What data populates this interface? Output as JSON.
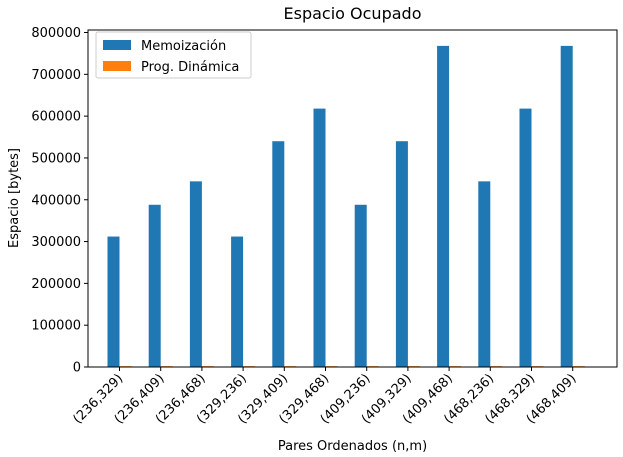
{
  "chart_data": {
    "type": "bar",
    "title": "Espacio Ocupado",
    "xlabel": "Pares Ordenados (n,m)",
    "ylabel": "Espacio [bytes]",
    "categories": [
      "(236,329)",
      "(236,409)",
      "(236,468)",
      "(329,236)",
      "(329,409)",
      "(329,468)",
      "(409,236)",
      "(409,329)",
      "(409,468)",
      "(468,236)",
      "(468,329)",
      "(468,409)"
    ],
    "series": [
      {
        "name": "Memoización",
        "color": "#1f77b4",
        "values": [
          312000,
          388000,
          444000,
          312000,
          540000,
          618000,
          388000,
          540000,
          768000,
          444000,
          618000,
          768000
        ]
      },
      {
        "name": "Prog. Dinámica",
        "color": "#ff7f0e",
        "values": [
          2000,
          2000,
          2000,
          2000,
          2000,
          2000,
          2000,
          2000,
          2000,
          2000,
          2000,
          2000
        ]
      }
    ],
    "yticks": [
      "0",
      "100000",
      "200000",
      "300000",
      "400000",
      "500000",
      "600000",
      "700000",
      "800000"
    ],
    "ylim": [
      0,
      806000
    ],
    "legend": "upper-left",
    "grid": false
  }
}
